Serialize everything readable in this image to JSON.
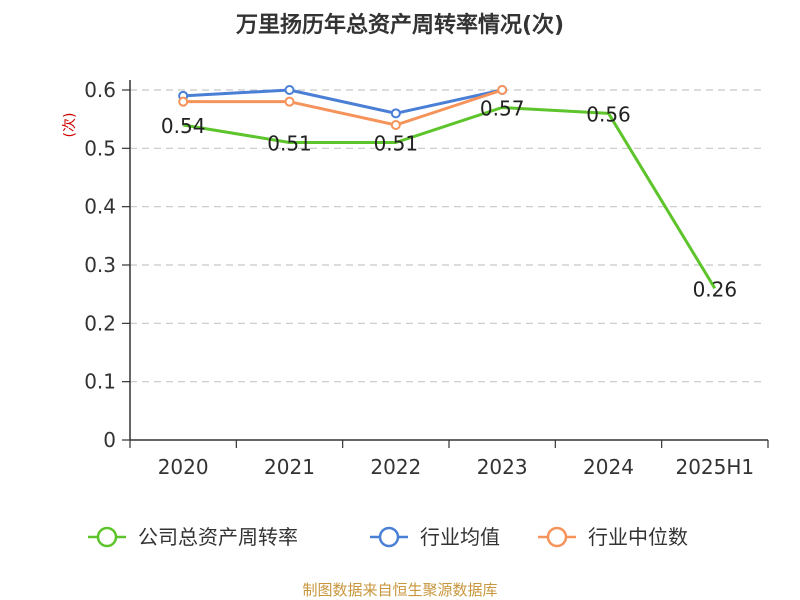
{
  "chart_data": {
    "type": "line",
    "title": "万里扬历年总资产周转率情况(次)",
    "ylabel": "(次)",
    "categories": [
      "2020",
      "2021",
      "2022",
      "2023",
      "2024",
      "2025H1"
    ],
    "ylim": [
      0,
      0.6
    ],
    "yticks": [
      0,
      0.1,
      0.2,
      0.3,
      0.4,
      0.5,
      0.6
    ],
    "grid": true,
    "legend_position": "bottom",
    "series": [
      {
        "name": "公司总资产周转率",
        "color": "#5dc42b",
        "values": [
          0.54,
          0.51,
          0.51,
          0.57,
          0.56,
          0.26
        ],
        "labels": [
          "0.54",
          "0.51",
          "0.51",
          "0.57",
          "0.56",
          "0.26"
        ],
        "markers": false
      },
      {
        "name": "行业均值",
        "color": "#4a7fd6",
        "values": [
          0.59,
          0.6,
          0.56,
          0.6,
          null,
          null
        ],
        "markers": true
      },
      {
        "name": "行业中位数",
        "color": "#f5935b",
        "values": [
          0.58,
          0.58,
          0.54,
          0.6,
          null,
          null
        ],
        "markers": true
      }
    ],
    "source": "制图数据来自恒生聚源数据库"
  }
}
